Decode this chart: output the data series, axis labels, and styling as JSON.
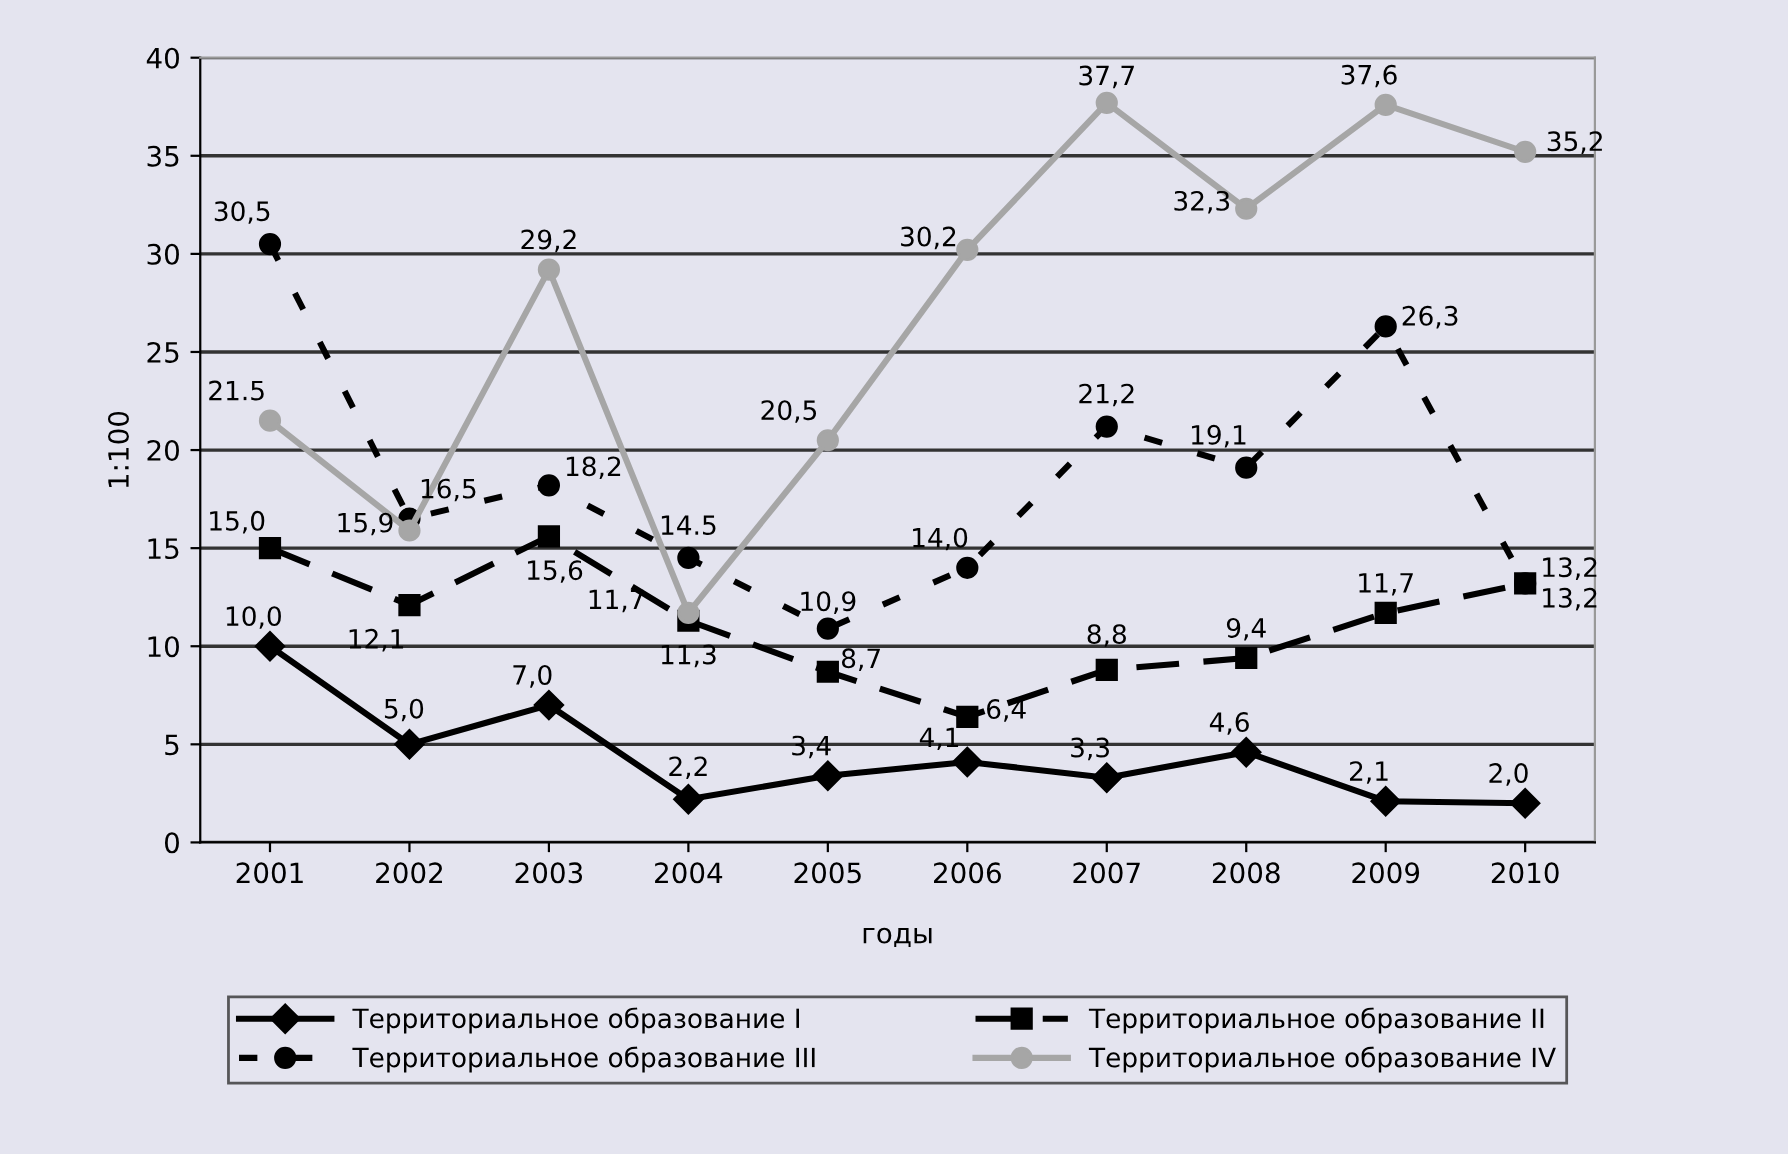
{
  "chart_data": {
    "type": "line",
    "xlabel": "годы",
    "ylabel": "1:100",
    "categories": [
      "2001",
      "2002",
      "2003",
      "2004",
      "2005",
      "2006",
      "2007",
      "2008",
      "2009",
      "2010"
    ],
    "ylim": [
      0,
      40
    ],
    "yticks": [
      0,
      5,
      10,
      15,
      20,
      25,
      30,
      35,
      40
    ],
    "grid": "y",
    "legend": "bottom",
    "series": [
      {
        "name": "Территориальное образование I",
        "color": "#000000",
        "marker": "diamond",
        "line_style": "solid",
        "values": [
          10.0,
          5.0,
          7.0,
          2.2,
          3.4,
          4.1,
          3.3,
          4.6,
          2.1,
          2.0
        ],
        "value_labels": [
          "10,0",
          "5,0",
          "7,0",
          "2,2",
          "3,4",
          "4,1",
          "3,3",
          "4,6",
          "2,1",
          "2,0"
        ]
      },
      {
        "name": "Территориальное образование II",
        "color": "#000000",
        "marker": "square",
        "line_style": "dashed",
        "values": [
          15.0,
          12.1,
          15.6,
          11.3,
          8.7,
          6.4,
          8.8,
          9.4,
          11.7,
          13.2
        ],
        "value_labels": [
          "15,0",
          "12,1",
          "15,6",
          "11,3",
          "8,7",
          "6,4",
          "8,8",
          "9,4",
          "11,7",
          "13,2"
        ]
      },
      {
        "name": "Территориальное образование III",
        "color": "#000000",
        "marker": "circle",
        "line_style": "dotted",
        "values": [
          30.5,
          16.5,
          18.2,
          14.5,
          10.9,
          14.0,
          21.2,
          19.1,
          26.3,
          13.2
        ],
        "value_labels": [
          "30,5",
          "16,5",
          "18,2",
          "14.5",
          "10,9",
          "14,0",
          "21,2",
          "19,1",
          "26,3",
          "13,2"
        ]
      },
      {
        "name": "Территориальное образование IV",
        "color": "#a6a6a6",
        "marker": "circle",
        "line_style": "solid",
        "values": [
          21.5,
          15.9,
          29.2,
          11.7,
          20.5,
          30.2,
          37.7,
          32.3,
          37.6,
          35.2
        ],
        "value_labels": [
          "21.5",
          "15,9",
          "29,2",
          "11,7",
          "20,5",
          "30,2",
          "37,7",
          "32,3",
          "37,6",
          "35,2"
        ]
      }
    ]
  }
}
